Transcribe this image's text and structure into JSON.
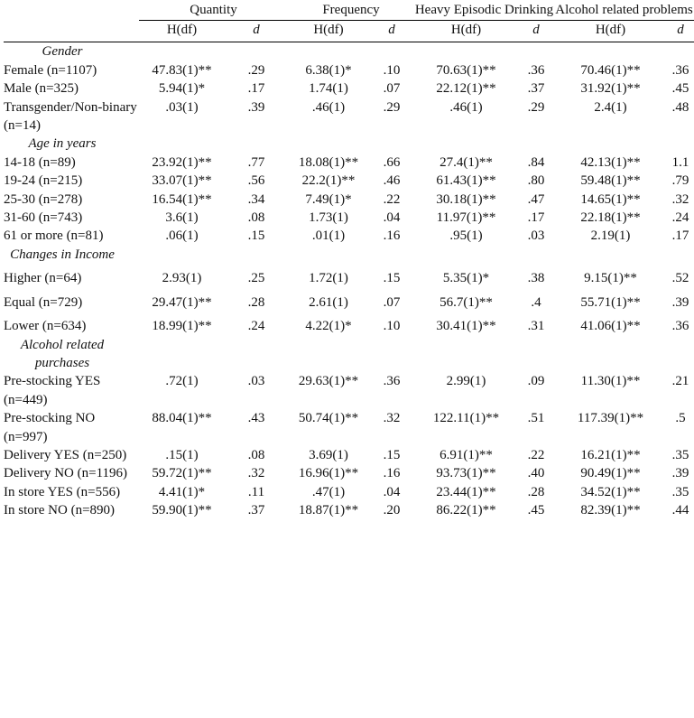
{
  "table": {
    "columns": [
      {
        "name": "Quantity",
        "sub": [
          "H(df)",
          "d"
        ]
      },
      {
        "name": "Frequency",
        "sub": [
          "H(df)",
          "d"
        ]
      },
      {
        "name": "Heavy Episodic Drinking",
        "sub": [
          "H(df)",
          "d"
        ]
      },
      {
        "name": "Alcohol related problems",
        "sub": [
          "H(df)",
          "d"
        ]
      }
    ],
    "sections": [
      {
        "title": "Gender",
        "rows": [
          {
            "label": "Female (n=1107)",
            "cells": [
              "47.83(1)**",
              ".29",
              "6.38(1)*",
              ".10",
              "70.63(1)**",
              ".36",
              "70.46(1)**",
              ".36"
            ]
          },
          {
            "label": "Male (n=325)",
            "cells": [
              "5.94(1)*",
              ".17",
              "1.74(1)",
              ".07",
              "22.12(1)**",
              ".37",
              "31.92(1)**",
              ".45"
            ]
          },
          {
            "label": "Transgender/Non-binary (n=14)",
            "cells": [
              ".03(1)",
              ".39",
              ".46(1)",
              ".29",
              ".46(1)",
              ".29",
              "2.4(1)",
              ".48"
            ]
          }
        ]
      },
      {
        "title": "Age in years",
        "rows": [
          {
            "label": "14-18 (n=89)",
            "cells": [
              "23.92(1)**",
              ".77",
              "18.08(1)**",
              ".66",
              "27.4(1)**",
              ".84",
              "42.13(1)**",
              "1.1"
            ]
          },
          {
            "label": "19-24 (n=215)",
            "cells": [
              "33.07(1)**",
              ".56",
              "22.2(1)**",
              ".46",
              "61.43(1)**",
              ".80",
              "59.48(1)**",
              ".79"
            ]
          },
          {
            "label": "25-30 (n=278)",
            "cells": [
              "16.54(1)**",
              ".34",
              "7.49(1)*",
              ".22",
              "30.18(1)**",
              ".47",
              "14.65(1)**",
              ".32"
            ]
          },
          {
            "label": "31-60 (n=743)",
            "cells": [
              "3.6(1)",
              ".08",
              "1.73(1)",
              ".04",
              "11.97(1)**",
              ".17",
              "22.18(1)**",
              ".24"
            ]
          },
          {
            "label": "61 or more (n=81)",
            "cells": [
              ".06(1)",
              ".15",
              ".01(1)",
              ".16",
              ".95(1)",
              ".03",
              "2.19(1)",
              ".17"
            ]
          }
        ]
      },
      {
        "title": "Changes in Income",
        "rows": [
          {
            "label": "Higher (n=64)",
            "cells": [
              "2.93(1)",
              ".25",
              "1.72(1)",
              ".15",
              "5.35(1)*",
              ".38",
              "9.15(1)**",
              ".52"
            ]
          },
          {
            "label": "Equal (n=729)",
            "cells": [
              "29.47(1)**",
              ".28",
              "2.61(1)",
              ".07",
              "56.7(1)**",
              ".4",
              "55.71(1)**",
              ".39"
            ]
          },
          {
            "label": "Lower (n=634)",
            "cells": [
              "18.99(1)**",
              ".24",
              "4.22(1)*",
              ".10",
              "30.41(1)**",
              ".31",
              "41.06(1)**",
              ".36"
            ]
          }
        ]
      },
      {
        "title": "Alcohol related purchases",
        "rows": [
          {
            "label": "Pre-stocking YES (n=449)",
            "cells": [
              ".72(1)",
              ".03",
              "29.63(1)**",
              ".36",
              "2.99(1)",
              ".09",
              "11.30(1)**",
              ".21"
            ]
          },
          {
            "label": "Pre-stocking NO (n=997)",
            "cells": [
              "88.04(1)**",
              ".43",
              "50.74(1)**",
              ".32",
              "122.11(1)**",
              ".51",
              "117.39(1)**",
              ".5"
            ]
          },
          {
            "label": "Delivery YES (n=250)",
            "cells": [
              ".15(1)",
              ".08",
              "3.69(1)",
              ".15",
              "6.91(1)**",
              ".22",
              "16.21(1)**",
              ".35"
            ]
          },
          {
            "label": "Delivery NO (n=1196)",
            "cells": [
              "59.72(1)**",
              ".32",
              "16.96(1)**",
              ".16",
              "93.73(1)**",
              ".40",
              "90.49(1)**",
              ".39"
            ]
          },
          {
            "label": "In store YES (n=556)",
            "cells": [
              "4.41(1)*",
              ".11",
              ".47(1)",
              ".04",
              "23.44(1)**",
              ".28",
              "34.52(1)**",
              ".35"
            ]
          },
          {
            "label": "In store NO (n=890)",
            "cells": [
              "59.90(1)**",
              ".37",
              "18.87(1)**",
              ".20",
              "86.22(1)**",
              ".45",
              "82.39(1)**",
              ".44"
            ]
          }
        ]
      }
    ]
  }
}
